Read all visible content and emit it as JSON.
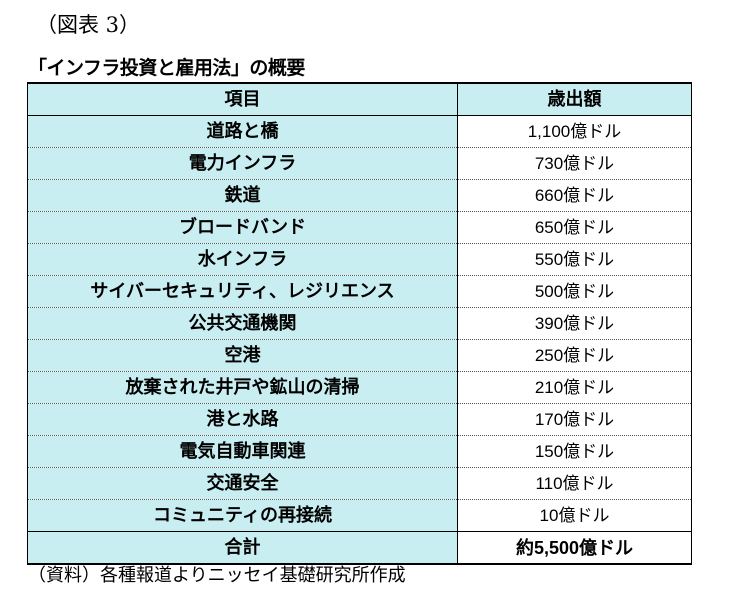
{
  "figure_label": "（図表 3）",
  "title": "「インフラ投資と雇用法」の概要",
  "table": {
    "headers": [
      "項目",
      "歳出額"
    ],
    "rows": [
      {
        "item": "道路と橋",
        "amount": "1,100億ドル"
      },
      {
        "item": "電力インフラ",
        "amount": "730億ドル"
      },
      {
        "item": "鉄道",
        "amount": "660億ドル"
      },
      {
        "item": "ブロードバンド",
        "amount": "650億ドル"
      },
      {
        "item": "水インフラ",
        "amount": "550億ドル"
      },
      {
        "item": "サイバーセキュリティ、レジリエンス",
        "amount": "500億ドル"
      },
      {
        "item": "公共交通機関",
        "amount": "390億ドル"
      },
      {
        "item": "空港",
        "amount": "250億ドル"
      },
      {
        "item": "放棄された井戸や鉱山の清掃",
        "amount": "210億ドル"
      },
      {
        "item": "港と水路",
        "amount": "170億ドル"
      },
      {
        "item": "電気自動車関連",
        "amount": "150億ドル"
      },
      {
        "item": "交通安全",
        "amount": "110億ドル"
      },
      {
        "item": "コミュニティの再接続",
        "amount": "10億ドル"
      }
    ],
    "total": {
      "item": "合計",
      "amount": "約5,500億ドル"
    }
  },
  "source": "（資料）各種報道よりニッセイ基礎研究所作成",
  "colors": {
    "item_cell_bg": "#c9eef1",
    "amount_cell_bg": "#ffffff",
    "border": "#000000"
  }
}
